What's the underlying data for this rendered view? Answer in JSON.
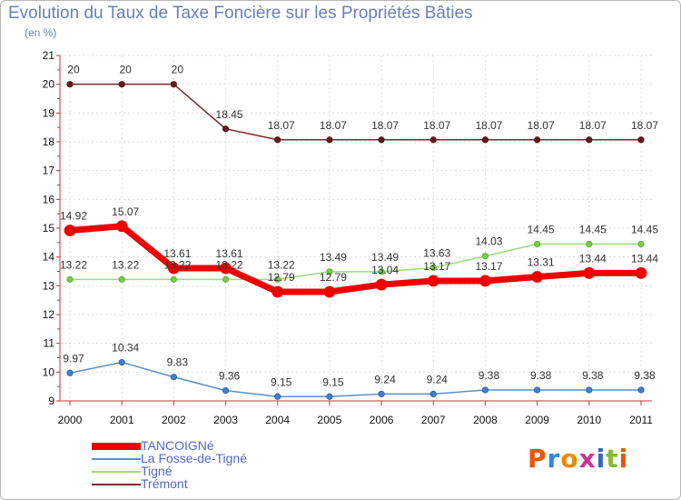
{
  "chart_data": {
    "type": "line",
    "title": "Evolution du Taux de Taxe Foncière sur les Propriétés Bâties",
    "subtitle": "(en %)",
    "categories": [
      "2000",
      "2001",
      "2002",
      "2003",
      "2004",
      "2005",
      "2006",
      "2007",
      "2008",
      "2009",
      "2010",
      "2011"
    ],
    "ylim": [
      9,
      21
    ],
    "yticks": [
      9,
      10,
      11,
      12,
      13,
      14,
      15,
      16,
      17,
      18,
      19,
      20,
      21
    ],
    "grid": true,
    "series": [
      {
        "name": "TANCOIGNé",
        "color": "#ee0000",
        "values": [
          14.92,
          15.07,
          13.61,
          13.61,
          12.79,
          12.79,
          13.04,
          13.17,
          13.17,
          13.31,
          13.44,
          13.44
        ],
        "labels": [
          "14.92",
          "15.07",
          "13.61",
          "13.61",
          "12.79",
          "12.79",
          "13.04",
          "13.17",
          "13.17",
          "13.31",
          "13.44",
          "13.44"
        ]
      },
      {
        "name": "La Fosse-de-Tigné",
        "color": "#5b8fc9",
        "values": [
          9.97,
          10.34,
          9.83,
          9.36,
          9.15,
          9.15,
          9.24,
          9.24,
          9.38,
          9.38,
          9.38,
          9.38
        ],
        "labels": [
          "9.97",
          "10.34",
          "9.83",
          "9.36",
          "9.15",
          "9.15",
          "9.24",
          "9.24",
          "9.38",
          "9.38",
          "9.38",
          "9.38"
        ]
      },
      {
        "name": "Tigné",
        "color": "#99dd77",
        "values": [
          13.22,
          13.22,
          13.22,
          13.22,
          13.22,
          13.49,
          13.49,
          13.63,
          14.03,
          14.45,
          14.45,
          14.45
        ],
        "labels": [
          "13.22",
          "13.22",
          "13.22",
          "13.22",
          "13.22",
          "13.49",
          "13.49",
          "13.63",
          "14.03",
          "14.45",
          "14.45",
          "14.45"
        ]
      },
      {
        "name": "Trémont",
        "color": "#7a2b2b",
        "values": [
          20,
          20,
          20,
          18.45,
          18.07,
          18.07,
          18.07,
          18.07,
          18.07,
          18.07,
          18.07,
          18.07
        ],
        "labels": [
          "20",
          "20",
          "20",
          "18.45",
          "18.07",
          "18.07",
          "18.07",
          "18.07",
          "18.07",
          "18.07",
          "18.07",
          "18.07"
        ]
      }
    ]
  },
  "legend": {
    "items": [
      {
        "label": "TANCOIGNé"
      },
      {
        "label": "La Fosse-de-Tigné"
      },
      {
        "label": "Tigné"
      },
      {
        "label": "Trémont"
      }
    ]
  },
  "logo": {
    "text": "Proxiti"
  }
}
